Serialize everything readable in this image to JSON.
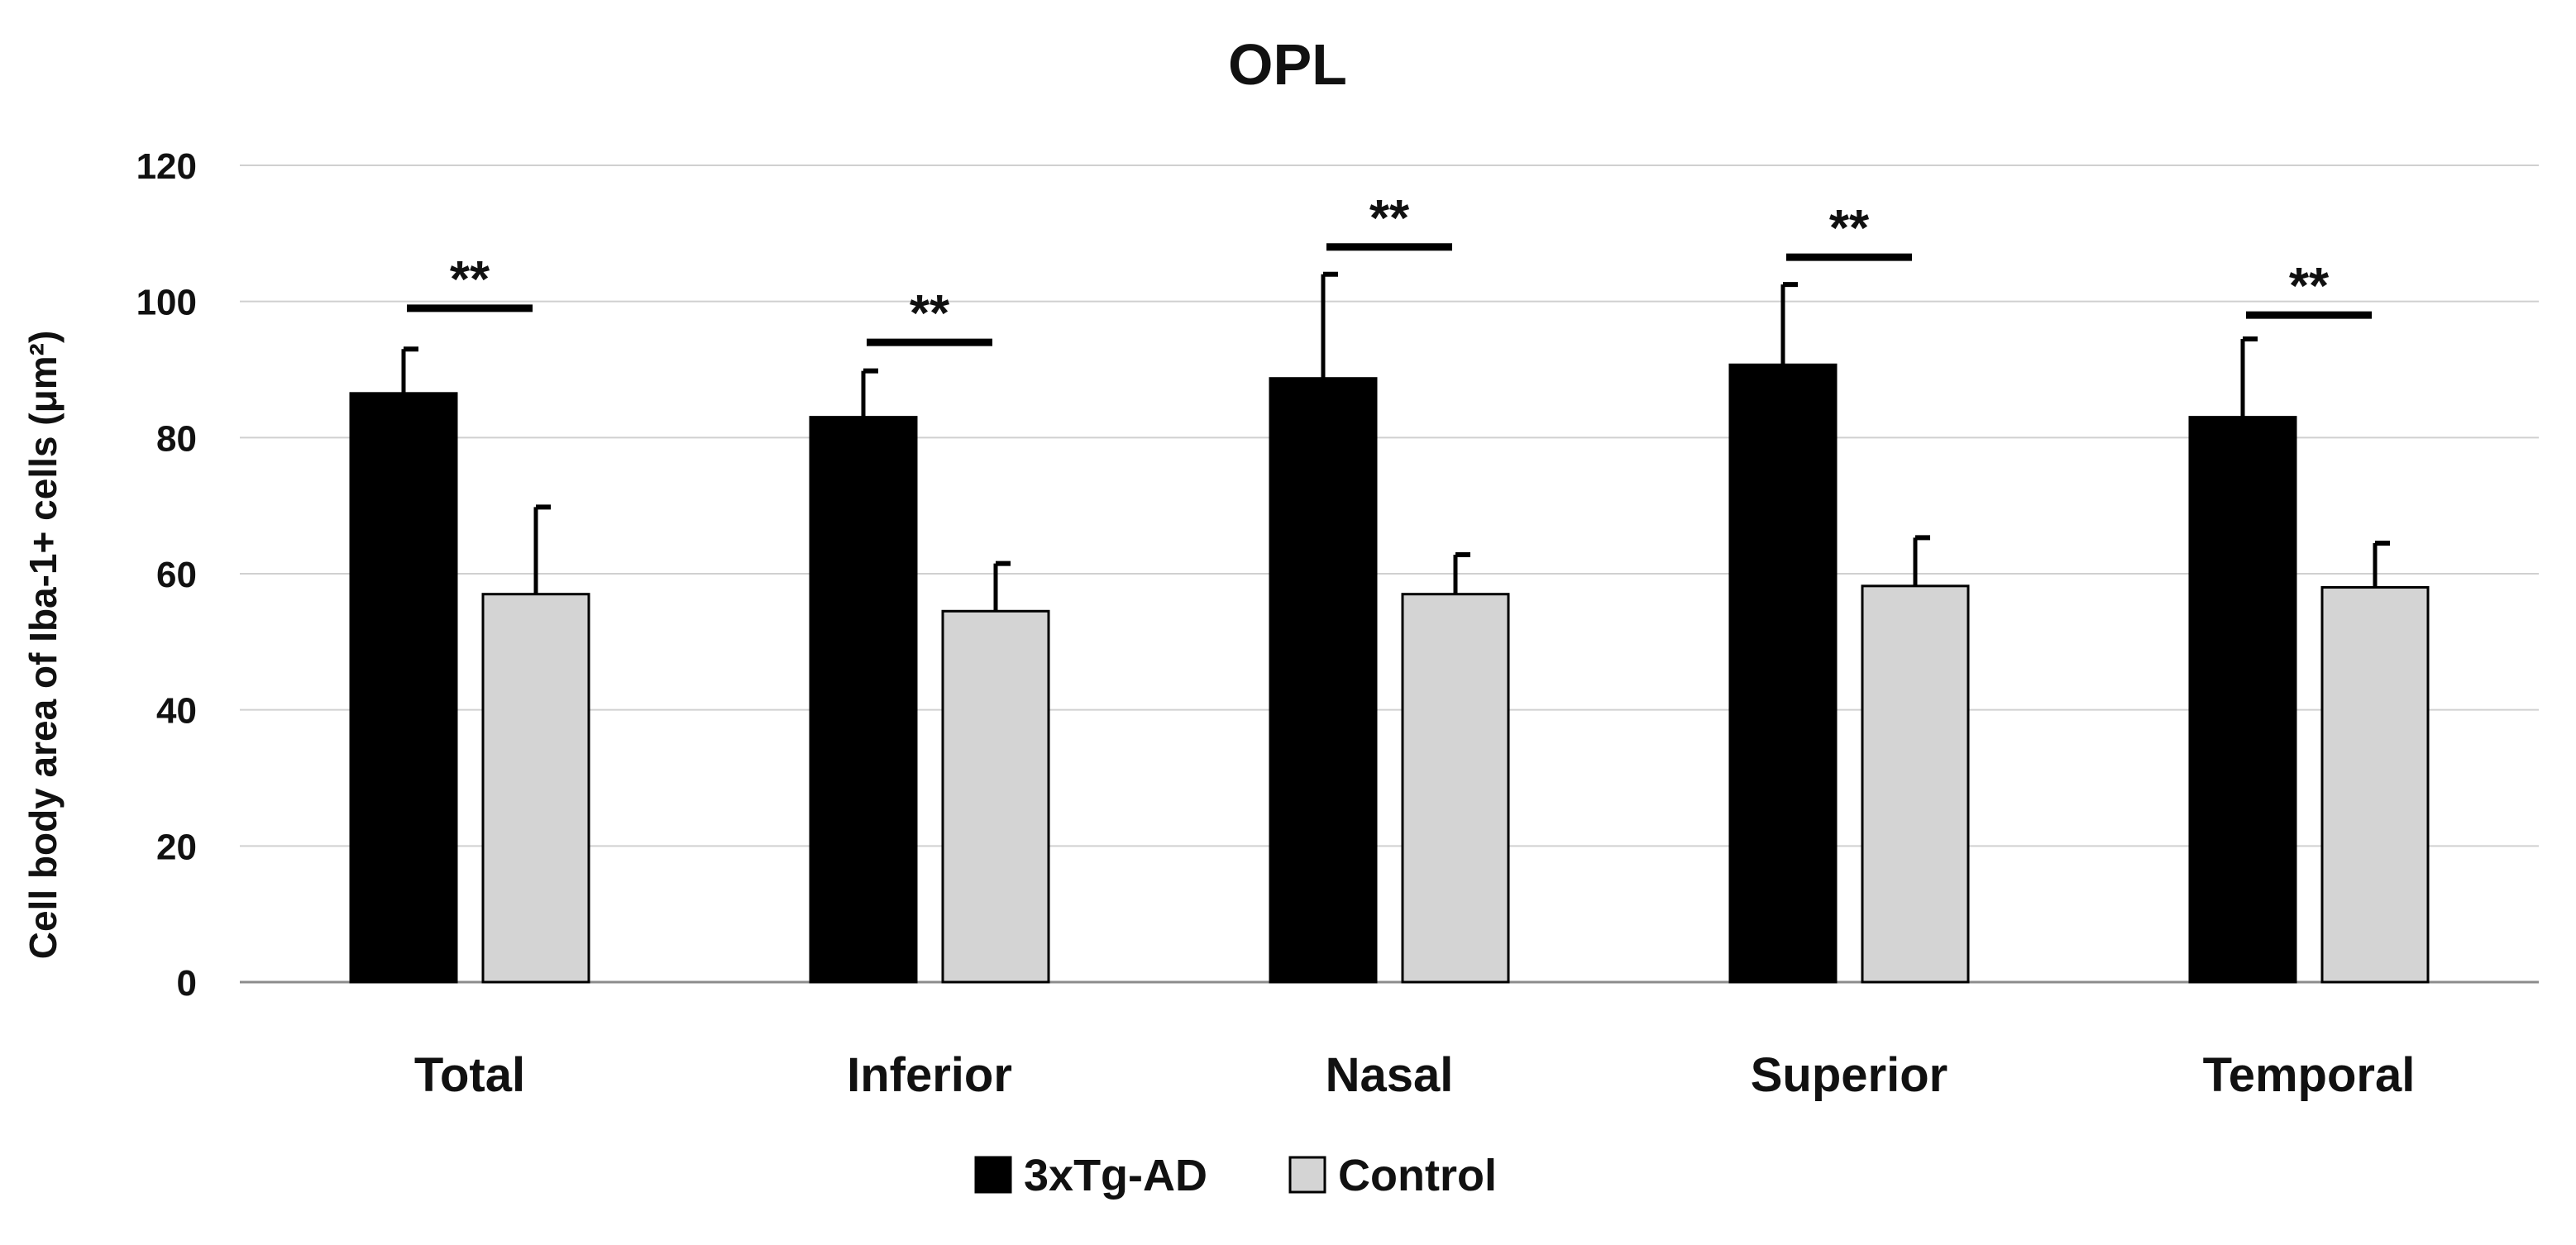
{
  "chart_data": {
    "type": "bar",
    "title": "OPL",
    "xlabel": "",
    "ylabel": "Cell body area of Iba-1+ cells (μm²)",
    "ylim": [
      0,
      120
    ],
    "yticks": [
      0,
      20,
      40,
      60,
      80,
      100,
      120
    ],
    "grid": true,
    "legend_position": "bottom-center",
    "categories": [
      "Total",
      "Inferior",
      "Nasal",
      "Superior",
      "Temporal"
    ],
    "series": [
      {
        "name": "3xTg-AD",
        "color": "#000000",
        "values": [
          86.5,
          83,
          88.7,
          90.7,
          83
        ],
        "error_upper": [
          93,
          89.8,
          104,
          102.5,
          94.5
        ]
      },
      {
        "name": "Control",
        "color": "#d4d4d4",
        "values": [
          57,
          54.5,
          57,
          58.2,
          58
        ],
        "error_upper": [
          69.8,
          61.5,
          62.8,
          65.3,
          64.5
        ]
      }
    ],
    "annotations": [
      {
        "category": "Total",
        "text": "**",
        "level": 99
      },
      {
        "category": "Inferior",
        "text": "**",
        "level": 94
      },
      {
        "category": "Nasal",
        "text": "**",
        "level": 108
      },
      {
        "category": "Superior",
        "text": "**",
        "level": 106.5
      },
      {
        "category": "Temporal",
        "text": "**",
        "level": 98
      }
    ]
  }
}
